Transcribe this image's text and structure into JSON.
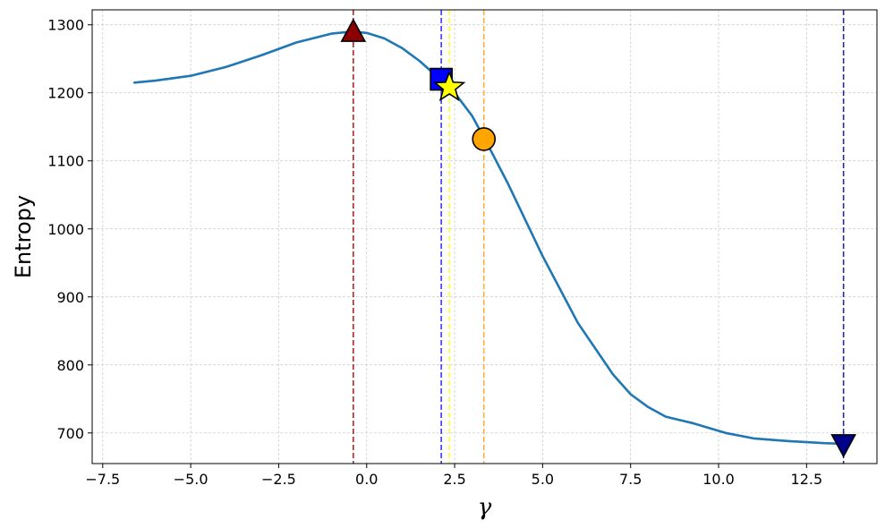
{
  "chart_data": {
    "type": "line",
    "xlabel": "γ",
    "ylabel": "Entropy",
    "xlim": [
      -7.8,
      14.5
    ],
    "ylim": [
      655,
      1322
    ],
    "xticks": [
      -7.5,
      -5.0,
      -2.5,
      0.0,
      2.5,
      5.0,
      7.5,
      10.0,
      12.5
    ],
    "xtick_labels": [
      "−7.5",
      "−5.0",
      "−2.5",
      "0.0",
      "2.5",
      "5.0",
      "7.5",
      "10.0",
      "12.5"
    ],
    "yticks": [
      700,
      800,
      900,
      1000,
      1100,
      1200,
      1300
    ],
    "ytick_labels": [
      "700",
      "800",
      "900",
      "1000",
      "1100",
      "1200",
      "1300"
    ],
    "grid": true,
    "series": [
      {
        "color": "#1f77b4",
        "x": [
          -6.6,
          -6.0,
          -5.0,
          -4.0,
          -3.0,
          -2.0,
          -1.0,
          -0.4,
          0.0,
          0.5,
          1.0,
          1.5,
          2.0,
          2.5,
          3.0,
          3.5,
          4.0,
          5.0,
          6.0,
          7.0,
          7.5,
          8.0,
          8.5,
          9.3,
          10.2,
          11.0,
          12.0,
          13.0,
          13.6
        ],
        "y": [
          1215,
          1218,
          1225,
          1238,
          1255,
          1274,
          1287,
          1290,
          1288,
          1280,
          1266,
          1247,
          1224,
          1200,
          1166,
          1118,
          1068,
          960,
          862,
          786,
          757,
          738,
          724,
          714,
          700,
          692,
          688,
          685,
          684
        ]
      }
    ],
    "markers": [
      {
        "shape": "triangle-up",
        "x": -0.38,
        "y": 1289,
        "color": "#8b0000",
        "vline_color": "#a52a2a"
      },
      {
        "shape": "square",
        "x": 2.12,
        "y": 1220,
        "color": "#0000ff",
        "vline_color": "#3a3af0"
      },
      {
        "shape": "star",
        "x": 2.35,
        "y": 1208,
        "color": "#ffff00",
        "vline_color": "#ffff33"
      },
      {
        "shape": "circle",
        "x": 3.33,
        "y": 1132,
        "color": "#ffa500",
        "vline_color": "#ffae3a"
      },
      {
        "shape": "triangle-down",
        "x": 13.55,
        "y": 684,
        "color": "#00008b",
        "vline_color": "#2a2a8a"
      }
    ]
  }
}
